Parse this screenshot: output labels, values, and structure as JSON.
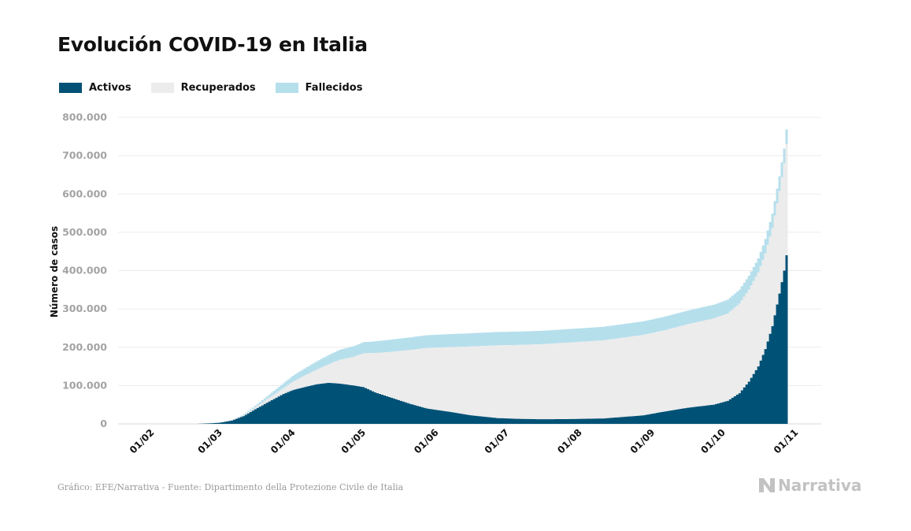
{
  "header": {
    "title": "Evolución COVID-19 en Italia"
  },
  "legend": [
    {
      "label": "Activos",
      "color": "#005176"
    },
    {
      "label": "Recuperados",
      "color": "#ececec"
    },
    {
      "label": "Fallecidos",
      "color": "#b6dfec"
    }
  ],
  "footer": {
    "source": "Gráfico: EFE/Narrativa - Fuente: Dipartimento della Protezione Civile de Italia",
    "brand": "Narrativa"
  },
  "chart_data": {
    "type": "area",
    "stacked": true,
    "ylabel": "Número de casos",
    "ylim": [
      0,
      800000
    ],
    "yticks": [
      0,
      100000,
      200000,
      300000,
      400000,
      500000,
      600000,
      700000,
      800000
    ],
    "ytick_labels": [
      "0",
      "100.000",
      "200.000",
      "300.000",
      "400.000",
      "500.000",
      "600.000",
      "700.000",
      "800.000"
    ],
    "x_start": "2020-02-01",
    "x_end": "2020-11-01",
    "xticks": [
      "2020-02-01",
      "2020-03-01",
      "2020-04-01",
      "2020-05-01",
      "2020-06-01",
      "2020-07-01",
      "2020-08-01",
      "2020-09-01",
      "2020-10-01",
      "2020-11-01"
    ],
    "xtick_labels": [
      "01/02",
      "01/03",
      "01/04",
      "01/05",
      "01/06",
      "01/07",
      "01/08",
      "01/09",
      "01/10",
      "01/11"
    ],
    "grid": true,
    "legend_position": "top-left",
    "series": [
      {
        "name": "Activos",
        "color": "#005176",
        "points": [
          [
            "2020-02-24",
            0
          ],
          [
            "2020-03-01",
            1500
          ],
          [
            "2020-03-05",
            3000
          ],
          [
            "2020-03-10",
            8500
          ],
          [
            "2020-03-15",
            20000
          ],
          [
            "2020-03-20",
            38000
          ],
          [
            "2020-03-25",
            55000
          ],
          [
            "2020-04-01",
            78000
          ],
          [
            "2020-04-05",
            88000
          ],
          [
            "2020-04-10",
            96000
          ],
          [
            "2020-04-15",
            103000
          ],
          [
            "2020-04-20",
            107000
          ],
          [
            "2020-04-25",
            105000
          ],
          [
            "2020-05-01",
            100000
          ],
          [
            "2020-05-05",
            96000
          ],
          [
            "2020-05-10",
            82000
          ],
          [
            "2020-05-15",
            72000
          ],
          [
            "2020-05-20",
            62000
          ],
          [
            "2020-05-25",
            52000
          ],
          [
            "2020-06-01",
            40000
          ],
          [
            "2020-06-10",
            32000
          ],
          [
            "2020-06-20",
            22000
          ],
          [
            "2020-07-01",
            15000
          ],
          [
            "2020-07-10",
            13000
          ],
          [
            "2020-07-20",
            12000
          ],
          [
            "2020-08-01",
            12500
          ],
          [
            "2020-08-15",
            14000
          ],
          [
            "2020-09-01",
            22000
          ],
          [
            "2020-09-10",
            32000
          ],
          [
            "2020-09-20",
            42000
          ],
          [
            "2020-10-01",
            50000
          ],
          [
            "2020-10-07",
            60000
          ],
          [
            "2020-10-12",
            80000
          ],
          [
            "2020-10-16",
            110000
          ],
          [
            "2020-10-20",
            150000
          ],
          [
            "2020-10-23",
            195000
          ],
          [
            "2020-10-26",
            255000
          ],
          [
            "2020-10-29",
            340000
          ],
          [
            "2020-10-31",
            400000
          ],
          [
            "2020-11-01",
            440000
          ]
        ]
      },
      {
        "name": "Recuperados",
        "color": "#ececec",
        "points": [
          [
            "2020-02-24",
            0
          ],
          [
            "2020-03-01",
            0
          ],
          [
            "2020-03-05",
            500
          ],
          [
            "2020-03-10",
            1000
          ],
          [
            "2020-03-15",
            2500
          ],
          [
            "2020-03-20",
            5000
          ],
          [
            "2020-03-25",
            9000
          ],
          [
            "2020-04-01",
            15000
          ],
          [
            "2020-04-05",
            22000
          ],
          [
            "2020-04-10",
            30000
          ],
          [
            "2020-04-15",
            38000
          ],
          [
            "2020-04-20",
            48000
          ],
          [
            "2020-04-25",
            62000
          ],
          [
            "2020-05-01",
            75000
          ],
          [
            "2020-05-05",
            88000
          ],
          [
            "2020-05-10",
            103000
          ],
          [
            "2020-05-15",
            115000
          ],
          [
            "2020-05-20",
            128000
          ],
          [
            "2020-05-25",
            141000
          ],
          [
            "2020-06-01",
            158000
          ],
          [
            "2020-06-10",
            168000
          ],
          [
            "2020-06-20",
            180000
          ],
          [
            "2020-07-01",
            190000
          ],
          [
            "2020-07-10",
            193000
          ],
          [
            "2020-07-20",
            196000
          ],
          [
            "2020-08-01",
            200000
          ],
          [
            "2020-08-15",
            204000
          ],
          [
            "2020-09-01",
            210000
          ],
          [
            "2020-09-10",
            212000
          ],
          [
            "2020-09-20",
            218000
          ],
          [
            "2020-10-01",
            225000
          ],
          [
            "2020-10-07",
            228000
          ],
          [
            "2020-10-12",
            234000
          ],
          [
            "2020-10-16",
            240000
          ],
          [
            "2020-10-20",
            245000
          ],
          [
            "2020-10-23",
            250000
          ],
          [
            "2020-10-26",
            256000
          ],
          [
            "2020-10-29",
            268000
          ],
          [
            "2020-10-31",
            280000
          ],
          [
            "2020-11-01",
            290000
          ]
        ]
      },
      {
        "name": "Fallecidos",
        "color": "#b6dfec",
        "points": [
          [
            "2020-02-24",
            0
          ],
          [
            "2020-03-01",
            40
          ],
          [
            "2020-03-05",
            150
          ],
          [
            "2020-03-10",
            600
          ],
          [
            "2020-03-15",
            1800
          ],
          [
            "2020-03-20",
            4000
          ],
          [
            "2020-03-25",
            7500
          ],
          [
            "2020-04-01",
            13000
          ],
          [
            "2020-04-05",
            15500
          ],
          [
            "2020-04-10",
            18500
          ],
          [
            "2020-04-15",
            21500
          ],
          [
            "2020-04-20",
            24000
          ],
          [
            "2020-04-25",
            26500
          ],
          [
            "2020-05-01",
            28000
          ],
          [
            "2020-05-05",
            29000
          ],
          [
            "2020-05-10",
            30500
          ],
          [
            "2020-05-15",
            31500
          ],
          [
            "2020-05-20",
            32300
          ],
          [
            "2020-05-25",
            32800
          ],
          [
            "2020-06-01",
            33400
          ],
          [
            "2020-06-10",
            34100
          ],
          [
            "2020-06-20",
            34600
          ],
          [
            "2020-07-01",
            34800
          ],
          [
            "2020-07-10",
            34900
          ],
          [
            "2020-07-20",
            35000
          ],
          [
            "2020-08-01",
            35200
          ],
          [
            "2020-08-15",
            35300
          ],
          [
            "2020-09-01",
            35500
          ],
          [
            "2020-09-10",
            35600
          ],
          [
            "2020-09-20",
            35700
          ],
          [
            "2020-10-01",
            35900
          ],
          [
            "2020-10-07",
            36100
          ],
          [
            "2020-10-12",
            36300
          ],
          [
            "2020-10-16",
            36700
          ],
          [
            "2020-10-20",
            37000
          ],
          [
            "2020-10-23",
            37500
          ],
          [
            "2020-10-26",
            37900
          ],
          [
            "2020-10-29",
            38400
          ],
          [
            "2020-10-31",
            38600
          ],
          [
            "2020-11-01",
            38700
          ]
        ]
      }
    ]
  }
}
